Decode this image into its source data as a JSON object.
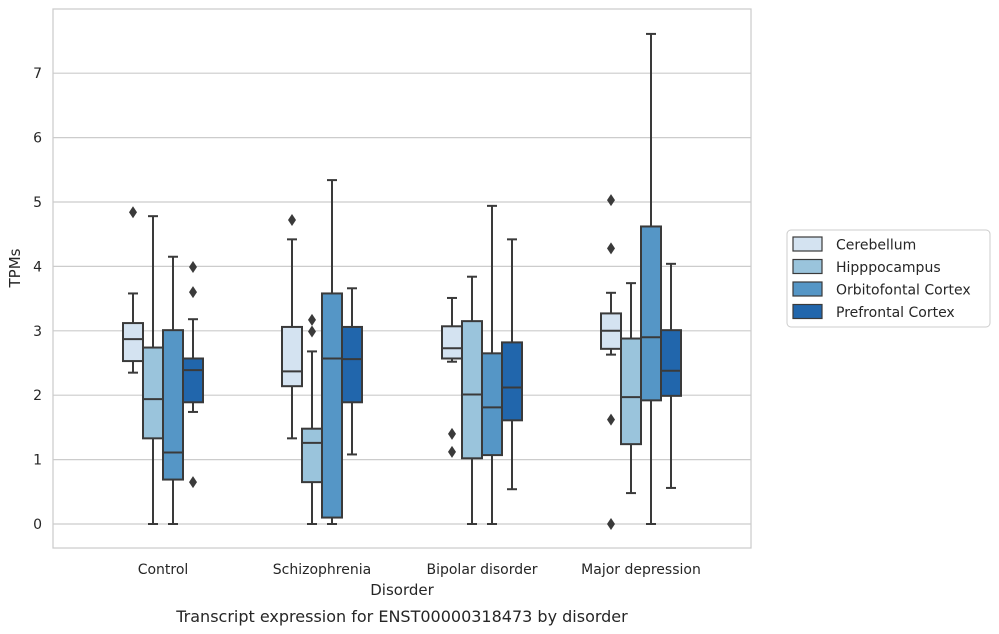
{
  "chart_data": {
    "type": "box",
    "title": "",
    "caption": "Transcript expression for ENST00000318473 by disorder",
    "xlabel": "Disorder",
    "ylabel": "TPMs",
    "ylim": [
      -0.37,
      7.95
    ],
    "yticks": [
      0,
      1,
      2,
      3,
      4,
      5,
      6,
      7
    ],
    "grid": "horizontal",
    "legend_position": "right",
    "categories": [
      "Control",
      "Schizophrenia",
      "Bipolar disorder",
      "Major depression"
    ],
    "series": [
      {
        "name": "Cerebellum",
        "color": "#d4e3f1",
        "boxes": [
          {
            "whislo": 2.35,
            "q1": 2.53,
            "med": 2.87,
            "q3": 3.12,
            "whishi": 3.58,
            "fliers": [
              4.84
            ]
          },
          {
            "whislo": 1.33,
            "q1": 2.14,
            "med": 2.37,
            "q3": 3.06,
            "whishi": 4.42,
            "fliers": [
              4.72
            ]
          },
          {
            "whislo": 2.52,
            "q1": 2.57,
            "med": 2.73,
            "q3": 3.07,
            "whishi": 3.51,
            "fliers": [
              1.4,
              1.12
            ]
          },
          {
            "whislo": 2.63,
            "q1": 2.72,
            "med": 3.0,
            "q3": 3.27,
            "whishi": 3.59,
            "fliers": [
              5.03,
              4.28,
              1.62,
              0.0
            ]
          }
        ]
      },
      {
        "name": "Hipppocampus",
        "color": "#9ac4dc",
        "boxes": [
          {
            "whislo": 0.0,
            "q1": 1.33,
            "med": 1.94,
            "q3": 2.74,
            "whishi": 4.78,
            "fliers": []
          },
          {
            "whislo": 0.0,
            "q1": 0.65,
            "med": 1.26,
            "q3": 1.48,
            "whishi": 2.68,
            "fliers": [
              3.17,
              2.99
            ]
          },
          {
            "whislo": 0.0,
            "q1": 1.02,
            "med": 2.01,
            "q3": 3.15,
            "whishi": 3.84,
            "fliers": []
          },
          {
            "whislo": 0.48,
            "q1": 1.24,
            "med": 1.97,
            "q3": 2.88,
            "whishi": 3.74,
            "fliers": []
          }
        ]
      },
      {
        "name": "Orbitofontal Cortex",
        "color": "#5596c6",
        "boxes": [
          {
            "whislo": 0.0,
            "q1": 0.69,
            "med": 1.11,
            "q3": 3.01,
            "whishi": 4.15,
            "fliers": []
          },
          {
            "whislo": 0.0,
            "q1": 0.1,
            "med": 2.57,
            "q3": 3.58,
            "whishi": 5.34,
            "fliers": []
          },
          {
            "whislo": 0.0,
            "q1": 1.07,
            "med": 1.81,
            "q3": 2.65,
            "whishi": 4.94,
            "fliers": []
          },
          {
            "whislo": 0.0,
            "q1": 1.92,
            "med": 2.9,
            "q3": 4.62,
            "whishi": 7.61,
            "fliers": []
          }
        ]
      },
      {
        "name": "Prefrontal Cortex",
        "color": "#2166ac",
        "boxes": [
          {
            "whislo": 1.74,
            "q1": 1.89,
            "med": 2.39,
            "q3": 2.57,
            "whishi": 3.18,
            "fliers": [
              3.99,
              3.6,
              0.65
            ]
          },
          {
            "whislo": 1.08,
            "q1": 1.89,
            "med": 2.56,
            "q3": 3.06,
            "whishi": 3.66,
            "fliers": []
          },
          {
            "whislo": 0.54,
            "q1": 1.61,
            "med": 2.12,
            "q3": 2.82,
            "whishi": 4.42,
            "fliers": []
          },
          {
            "whislo": 0.56,
            "q1": 1.99,
            "med": 2.38,
            "q3": 3.01,
            "whishi": 4.04,
            "fliers": []
          }
        ]
      }
    ]
  }
}
